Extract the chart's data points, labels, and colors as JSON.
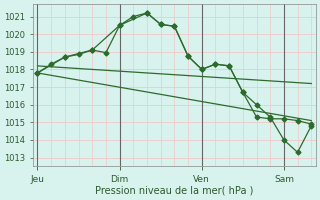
{
  "bg_color": "#d8f2ee",
  "grid_major_color": "#f0c8c8",
  "grid_minor_color": "#f0c8c8",
  "line_color": "#2d6b2d",
  "marker_color": "#2d6b2d",
  "xlabel": "Pression niveau de la mer( hPa )",
  "ylim": [
    1012.5,
    1021.7
  ],
  "yticks": [
    1013,
    1014,
    1015,
    1016,
    1017,
    1018,
    1019,
    1020,
    1021
  ],
  "day_labels": [
    "Jeu",
    "Dim",
    "Ven",
    "Sam"
  ],
  "day_positions": [
    0,
    36,
    72,
    108
  ],
  "xlim": [
    -2,
    122
  ],
  "vline_positions": [
    0,
    36,
    72,
    108
  ],
  "vline_color": "#666666",
  "series1_x": [
    0,
    6,
    12,
    18,
    24,
    30,
    36,
    42,
    48,
    54,
    60,
    66,
    72,
    78,
    84,
    90,
    96,
    102,
    108,
    114,
    120
  ],
  "series1_y": [
    1017.8,
    1018.3,
    1018.7,
    1018.85,
    1019.1,
    1018.95,
    1020.5,
    1021.0,
    1021.2,
    1020.55,
    1020.45,
    1018.75,
    1018.0,
    1018.3,
    1018.2,
    1016.7,
    1016.0,
    1015.3,
    1014.0,
    1013.3,
    1014.8
  ],
  "series2_x": [
    0,
    12,
    24,
    36,
    48,
    54,
    60,
    66,
    72,
    78,
    84,
    90,
    96,
    102,
    108,
    114,
    120
  ],
  "series2_y": [
    1017.8,
    1018.7,
    1019.1,
    1020.5,
    1021.2,
    1020.55,
    1020.45,
    1018.75,
    1018.0,
    1018.3,
    1018.2,
    1016.7,
    1015.3,
    1015.2,
    1015.2,
    1015.1,
    1014.9
  ],
  "trend1_x": [
    0,
    120
  ],
  "trend1_y": [
    1018.2,
    1017.2
  ],
  "trend2_x": [
    0,
    120
  ],
  "trend2_y": [
    1017.8,
    1015.1
  ]
}
